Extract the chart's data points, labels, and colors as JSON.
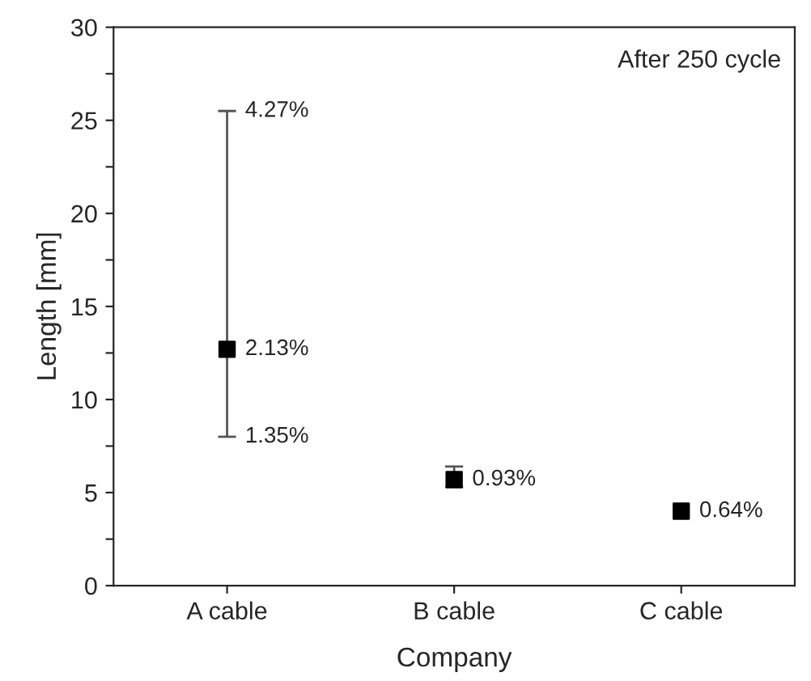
{
  "chart_data": {
    "type": "scatter",
    "xlabel": "Company",
    "ylabel": "Length [mm]",
    "categories": [
      "A cable",
      "B cable",
      "C cable"
    ],
    "values": [
      12.7,
      5.7,
      4.0
    ],
    "errors": [
      [
        8.0,
        25.5
      ],
      [
        5.3,
        6.4
      ],
      null
    ],
    "color": "#000000",
    "marker": "square",
    "annotations": [
      {
        "text": "4.27%",
        "x": "A cable",
        "y": 25.5
      },
      {
        "text": "2.13%",
        "x": "A cable",
        "y": 12.7
      },
      {
        "text": "1.35%",
        "x": "A cable",
        "y": 8.0
      },
      {
        "text": "0.93%",
        "x": "B cable",
        "y": 5.7
      },
      {
        "text": "0.64%",
        "x": "C cable",
        "y": 4.0
      },
      "After 250 cycle"
    ],
    "ylim": [
      0,
      30
    ],
    "yticks": [
      0,
      {
        "value": 2.5,
        "label": null
      },
      5,
      {
        "value": 7.5,
        "label": null
      },
      10,
      {
        "value": 12.5,
        "label": null
      },
      15,
      {
        "value": 17.5,
        "label": null
      },
      20,
      {
        "value": 22.5,
        "label": null
      },
      25,
      {
        "value": 27.5,
        "label": null
      },
      30
    ],
    "grid": false,
    "legend": false
  }
}
